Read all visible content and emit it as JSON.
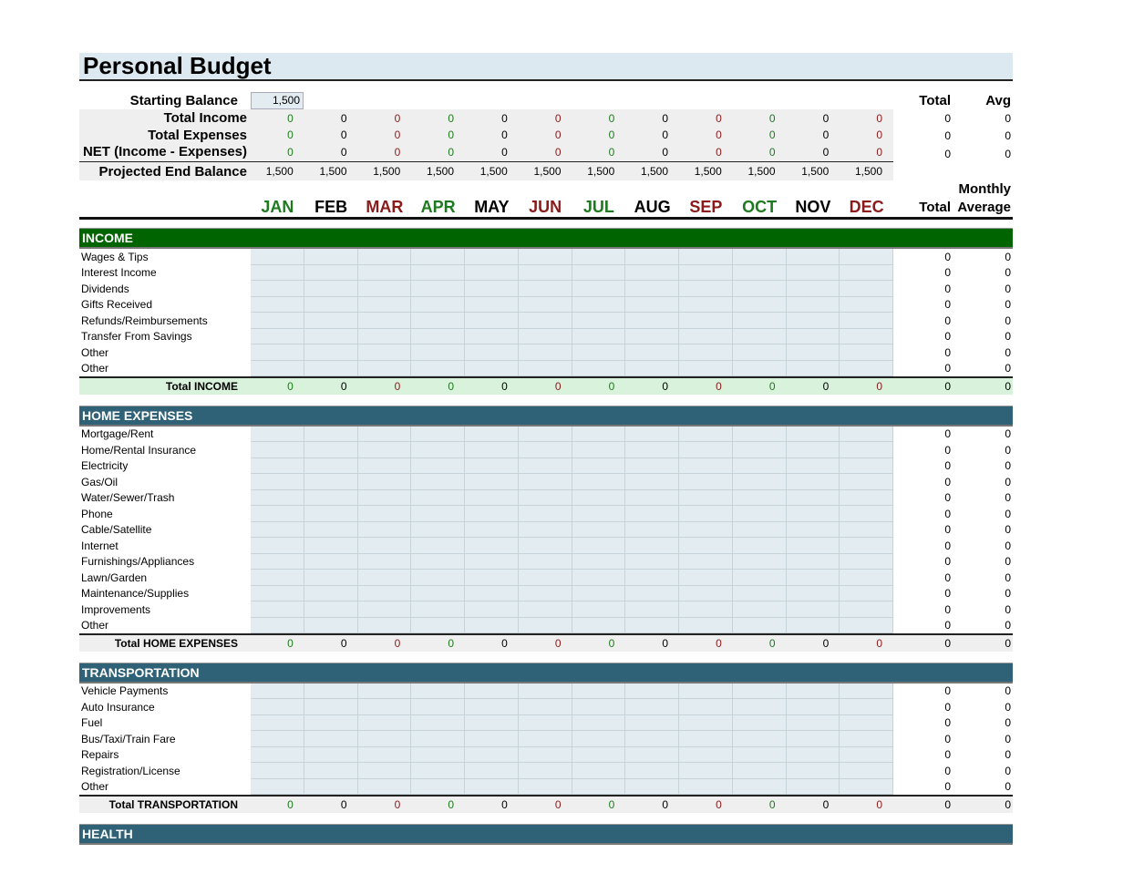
{
  "title": "Personal Budget",
  "colors": {
    "income_bar": "#006400",
    "section_bar": "#2f6177",
    "total_income_bg": "#d9f2dc",
    "input_cell": "#e3ecf1"
  },
  "months": [
    "JAN",
    "FEB",
    "MAR",
    "APR",
    "MAY",
    "JUN",
    "JUL",
    "AUG",
    "SEP",
    "OCT",
    "NOV",
    "DEC"
  ],
  "month_colors": [
    "g",
    "k",
    "r",
    "g",
    "k",
    "r",
    "g",
    "k",
    "r",
    "g",
    "k",
    "r"
  ],
  "summary": {
    "starting_balance_label": "Starting Balance",
    "starting_balance": "1,500",
    "total_header": "Total",
    "avg_header": "Avg",
    "rows": [
      {
        "label": "Total Income",
        "values": [
          "0",
          "0",
          "0",
          "0",
          "0",
          "0",
          "0",
          "0",
          "0",
          "0",
          "0",
          "0"
        ],
        "total": "0",
        "avg": "0"
      },
      {
        "label": "Total Expenses",
        "values": [
          "0",
          "0",
          "0",
          "0",
          "0",
          "0",
          "0",
          "0",
          "0",
          "0",
          "0",
          "0"
        ],
        "total": "0",
        "avg": "0"
      },
      {
        "label": "NET (Income - Expenses)",
        "values": [
          "0",
          "0",
          "0",
          "0",
          "0",
          "0",
          "0",
          "0",
          "0",
          "0",
          "0",
          "0"
        ],
        "total": "0",
        "avg": "0"
      },
      {
        "label": "Projected End Balance",
        "values": [
          "1,500",
          "1,500",
          "1,500",
          "1,500",
          "1,500",
          "1,500",
          "1,500",
          "1,500",
          "1,500",
          "1,500",
          "1,500",
          "1,500"
        ]
      }
    ],
    "monthly_label": "Monthly",
    "total_label": "Total",
    "average_label": "Average"
  },
  "sections": [
    {
      "name": "INCOME",
      "items": [
        "Wages & Tips",
        "Interest Income",
        "Dividends",
        "Gifts Received",
        "Refunds/Reimbursements",
        "Transfer From Savings",
        "Other",
        "Other"
      ],
      "total_label": "Total INCOME",
      "values": [
        "0",
        "0",
        "0",
        "0",
        "0",
        "0",
        "0",
        "0",
        "0",
        "0",
        "0",
        "0"
      ],
      "total": "0",
      "avg": "0",
      "item_total": "0",
      "item_avg": "0"
    },
    {
      "name": "HOME EXPENSES",
      "items": [
        "Mortgage/Rent",
        "Home/Rental Insurance",
        "Electricity",
        "Gas/Oil",
        "Water/Sewer/Trash",
        "Phone",
        "Cable/Satellite",
        "Internet",
        "Furnishings/Appliances",
        "Lawn/Garden",
        "Maintenance/Supplies",
        "Improvements",
        "Other"
      ],
      "total_label": "Total HOME EXPENSES",
      "values": [
        "0",
        "0",
        "0",
        "0",
        "0",
        "0",
        "0",
        "0",
        "0",
        "0",
        "0",
        "0"
      ],
      "total": "0",
      "avg": "0",
      "item_total": "0",
      "item_avg": "0"
    },
    {
      "name": "TRANSPORTATION",
      "items": [
        "Vehicle Payments",
        "Auto Insurance",
        "Fuel",
        "Bus/Taxi/Train Fare",
        "Repairs",
        "Registration/License",
        "Other"
      ],
      "total_label": "Total TRANSPORTATION",
      "values": [
        "0",
        "0",
        "0",
        "0",
        "0",
        "0",
        "0",
        "0",
        "0",
        "0",
        "0",
        "0"
      ],
      "total": "0",
      "avg": "0",
      "item_total": "0",
      "item_avg": "0"
    },
    {
      "name": "HEALTH",
      "items": []
    }
  ]
}
